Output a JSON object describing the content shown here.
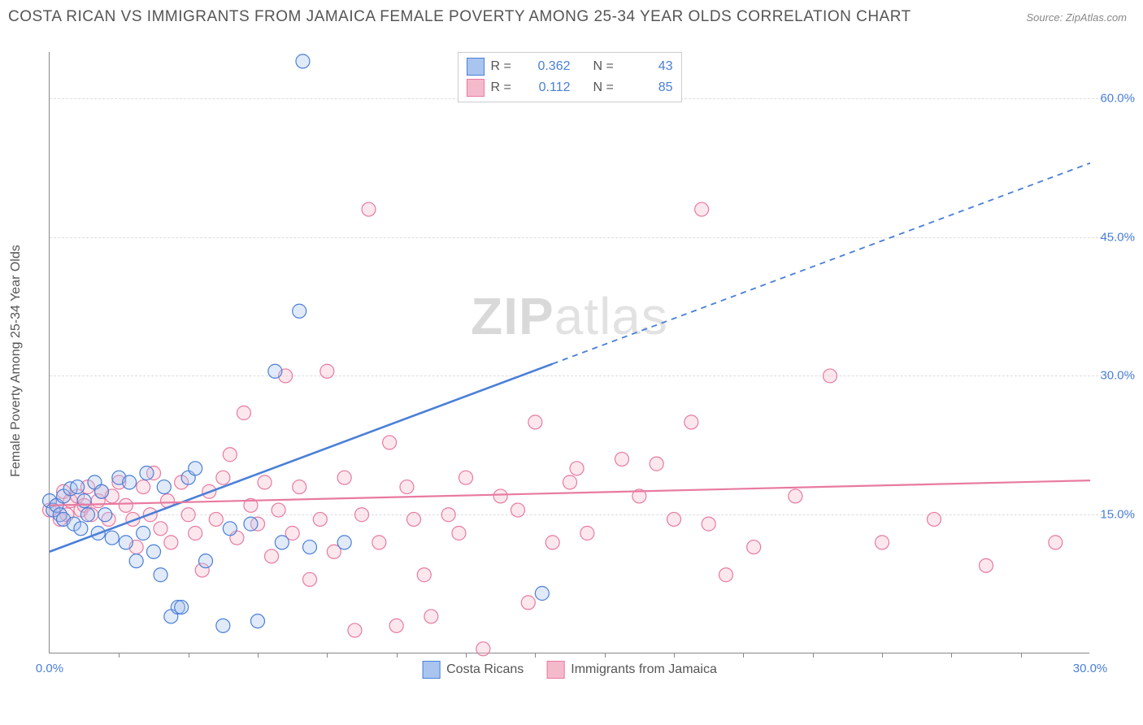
{
  "title": "COSTA RICAN VS IMMIGRANTS FROM JAMAICA FEMALE POVERTY AMONG 25-34 YEAR OLDS CORRELATION CHART",
  "source": "Source: ZipAtlas.com",
  "y_axis_label": "Female Poverty Among 25-34 Year Olds",
  "watermark": "ZIPatlas",
  "chart": {
    "type": "scatter",
    "xlim": [
      0,
      30
    ],
    "ylim": [
      0,
      65
    ],
    "x_ticks_labeled": [
      {
        "v": 0.0,
        "label": "0.0%"
      },
      {
        "v": 30.0,
        "label": "30.0%"
      }
    ],
    "x_minor_ticks": [
      2,
      4,
      6,
      8,
      10,
      12,
      14,
      16,
      18,
      20,
      22,
      24,
      26,
      28
    ],
    "y_ticks": [
      {
        "v": 15.0,
        "label": "15.0%"
      },
      {
        "v": 30.0,
        "label": "30.0%"
      },
      {
        "v": 45.0,
        "label": "45.0%"
      },
      {
        "v": 60.0,
        "label": "60.0%"
      }
    ],
    "grid_color": "#dddddd",
    "axis_color": "#888888",
    "background_color": "#ffffff",
    "marker_radius": 8.5,
    "marker_stroke_width": 1.2,
    "marker_fill_opacity": 0.35,
    "series": [
      {
        "name": "Costa Ricans",
        "color_stroke": "#4a7fd8",
        "color_fill": "#a9c4ee",
        "R": "0.362",
        "N": "43",
        "trend": {
          "x1": 0.0,
          "y1": 11.0,
          "x2": 30.0,
          "y2": 53.0,
          "solid_until_x": 14.5,
          "stroke_width": 2.6
        },
        "points": [
          [
            0.0,
            16.5
          ],
          [
            0.1,
            15.5
          ],
          [
            0.2,
            16.0
          ],
          [
            0.3,
            15.0
          ],
          [
            0.4,
            17.0
          ],
          [
            0.4,
            14.5
          ],
          [
            0.6,
            17.8
          ],
          [
            0.7,
            14.0
          ],
          [
            0.8,
            18.0
          ],
          [
            0.9,
            13.5
          ],
          [
            1.0,
            16.5
          ],
          [
            1.1,
            15.0
          ],
          [
            1.3,
            18.5
          ],
          [
            1.4,
            13.0
          ],
          [
            1.5,
            17.5
          ],
          [
            1.6,
            15.0
          ],
          [
            1.8,
            12.5
          ],
          [
            2.0,
            19.0
          ],
          [
            2.2,
            12.0
          ],
          [
            2.3,
            18.5
          ],
          [
            2.5,
            10.0
          ],
          [
            2.7,
            13.0
          ],
          [
            2.8,
            19.5
          ],
          [
            3.0,
            11.0
          ],
          [
            3.2,
            8.5
          ],
          [
            3.3,
            18.0
          ],
          [
            3.5,
            4.0
          ],
          [
            3.7,
            5.0
          ],
          [
            3.8,
            5.0
          ],
          [
            4.0,
            19.0
          ],
          [
            4.2,
            20.0
          ],
          [
            4.5,
            10.0
          ],
          [
            5.0,
            3.0
          ],
          [
            5.2,
            13.5
          ],
          [
            5.8,
            14.0
          ],
          [
            6.0,
            3.5
          ],
          [
            6.5,
            30.5
          ],
          [
            6.7,
            12.0
          ],
          [
            7.2,
            37.0
          ],
          [
            7.3,
            64.0
          ],
          [
            7.5,
            11.5
          ],
          [
            8.5,
            12.0
          ],
          [
            14.2,
            6.5
          ]
        ]
      },
      {
        "name": "Immigrants from Jamaica",
        "color_stroke": "#e87aa0",
        "color_fill": "#f5b9cc",
        "R": "0.112",
        "N": "85",
        "trend": {
          "x1": 0.0,
          "y1": 16.0,
          "x2": 30.0,
          "y2": 18.7,
          "solid_until_x": 30.0,
          "stroke_width": 2.2
        },
        "points": [
          [
            0.0,
            15.5
          ],
          [
            0.2,
            16.0
          ],
          [
            0.3,
            14.5
          ],
          [
            0.4,
            17.5
          ],
          [
            0.5,
            15.0
          ],
          [
            0.6,
            16.5
          ],
          [
            0.8,
            17.0
          ],
          [
            0.9,
            15.5
          ],
          [
            1.0,
            16.0
          ],
          [
            1.1,
            18.0
          ],
          [
            1.2,
            15.0
          ],
          [
            1.4,
            16.5
          ],
          [
            1.5,
            17.5
          ],
          [
            1.7,
            14.5
          ],
          [
            1.8,
            17.0
          ],
          [
            2.0,
            18.5
          ],
          [
            2.2,
            16.0
          ],
          [
            2.4,
            14.5
          ],
          [
            2.5,
            11.5
          ],
          [
            2.7,
            18.0
          ],
          [
            2.9,
            15.0
          ],
          [
            3.0,
            19.5
          ],
          [
            3.2,
            13.5
          ],
          [
            3.4,
            16.5
          ],
          [
            3.5,
            12.0
          ],
          [
            3.8,
            18.5
          ],
          [
            4.0,
            15.0
          ],
          [
            4.2,
            13.0
          ],
          [
            4.4,
            9.0
          ],
          [
            4.6,
            17.5
          ],
          [
            4.8,
            14.5
          ],
          [
            5.0,
            19.0
          ],
          [
            5.2,
            21.5
          ],
          [
            5.4,
            12.5
          ],
          [
            5.6,
            26.0
          ],
          [
            5.8,
            16.0
          ],
          [
            6.0,
            14.0
          ],
          [
            6.2,
            18.5
          ],
          [
            6.4,
            10.5
          ],
          [
            6.6,
            15.5
          ],
          [
            6.8,
            30.0
          ],
          [
            7.0,
            13.0
          ],
          [
            7.2,
            18.0
          ],
          [
            7.5,
            8.0
          ],
          [
            7.8,
            14.5
          ],
          [
            8.0,
            30.5
          ],
          [
            8.2,
            11.0
          ],
          [
            8.5,
            19.0
          ],
          [
            8.8,
            2.5
          ],
          [
            9.0,
            15.0
          ],
          [
            9.2,
            48.0
          ],
          [
            9.5,
            12.0
          ],
          [
            9.8,
            22.8
          ],
          [
            10.0,
            3.0
          ],
          [
            10.3,
            18.0
          ],
          [
            10.5,
            14.5
          ],
          [
            10.8,
            8.5
          ],
          [
            11.0,
            4.0
          ],
          [
            11.5,
            15.0
          ],
          [
            11.8,
            13.0
          ],
          [
            12.0,
            19.0
          ],
          [
            12.5,
            0.5
          ],
          [
            13.0,
            17.0
          ],
          [
            13.5,
            15.5
          ],
          [
            13.8,
            5.5
          ],
          [
            14.0,
            25.0
          ],
          [
            14.5,
            12.0
          ],
          [
            15.0,
            18.5
          ],
          [
            15.2,
            20.0
          ],
          [
            15.5,
            13.0
          ],
          [
            16.5,
            21.0
          ],
          [
            17.0,
            17.0
          ],
          [
            17.5,
            20.5
          ],
          [
            18.0,
            14.5
          ],
          [
            18.5,
            25.0
          ],
          [
            18.8,
            48.0
          ],
          [
            19.0,
            14.0
          ],
          [
            19.5,
            8.5
          ],
          [
            20.3,
            11.5
          ],
          [
            21.5,
            17.0
          ],
          [
            22.5,
            30.0
          ],
          [
            24.0,
            12.0
          ],
          [
            25.5,
            14.5
          ],
          [
            27.0,
            9.5
          ],
          [
            29.0,
            12.0
          ]
        ]
      }
    ]
  },
  "legend_bottom": [
    {
      "label": "Costa Ricans",
      "fill": "#a9c4ee",
      "stroke": "#4a7fd8"
    },
    {
      "label": "Immigrants from Jamaica",
      "fill": "#f5b9cc",
      "stroke": "#e87aa0"
    }
  ]
}
